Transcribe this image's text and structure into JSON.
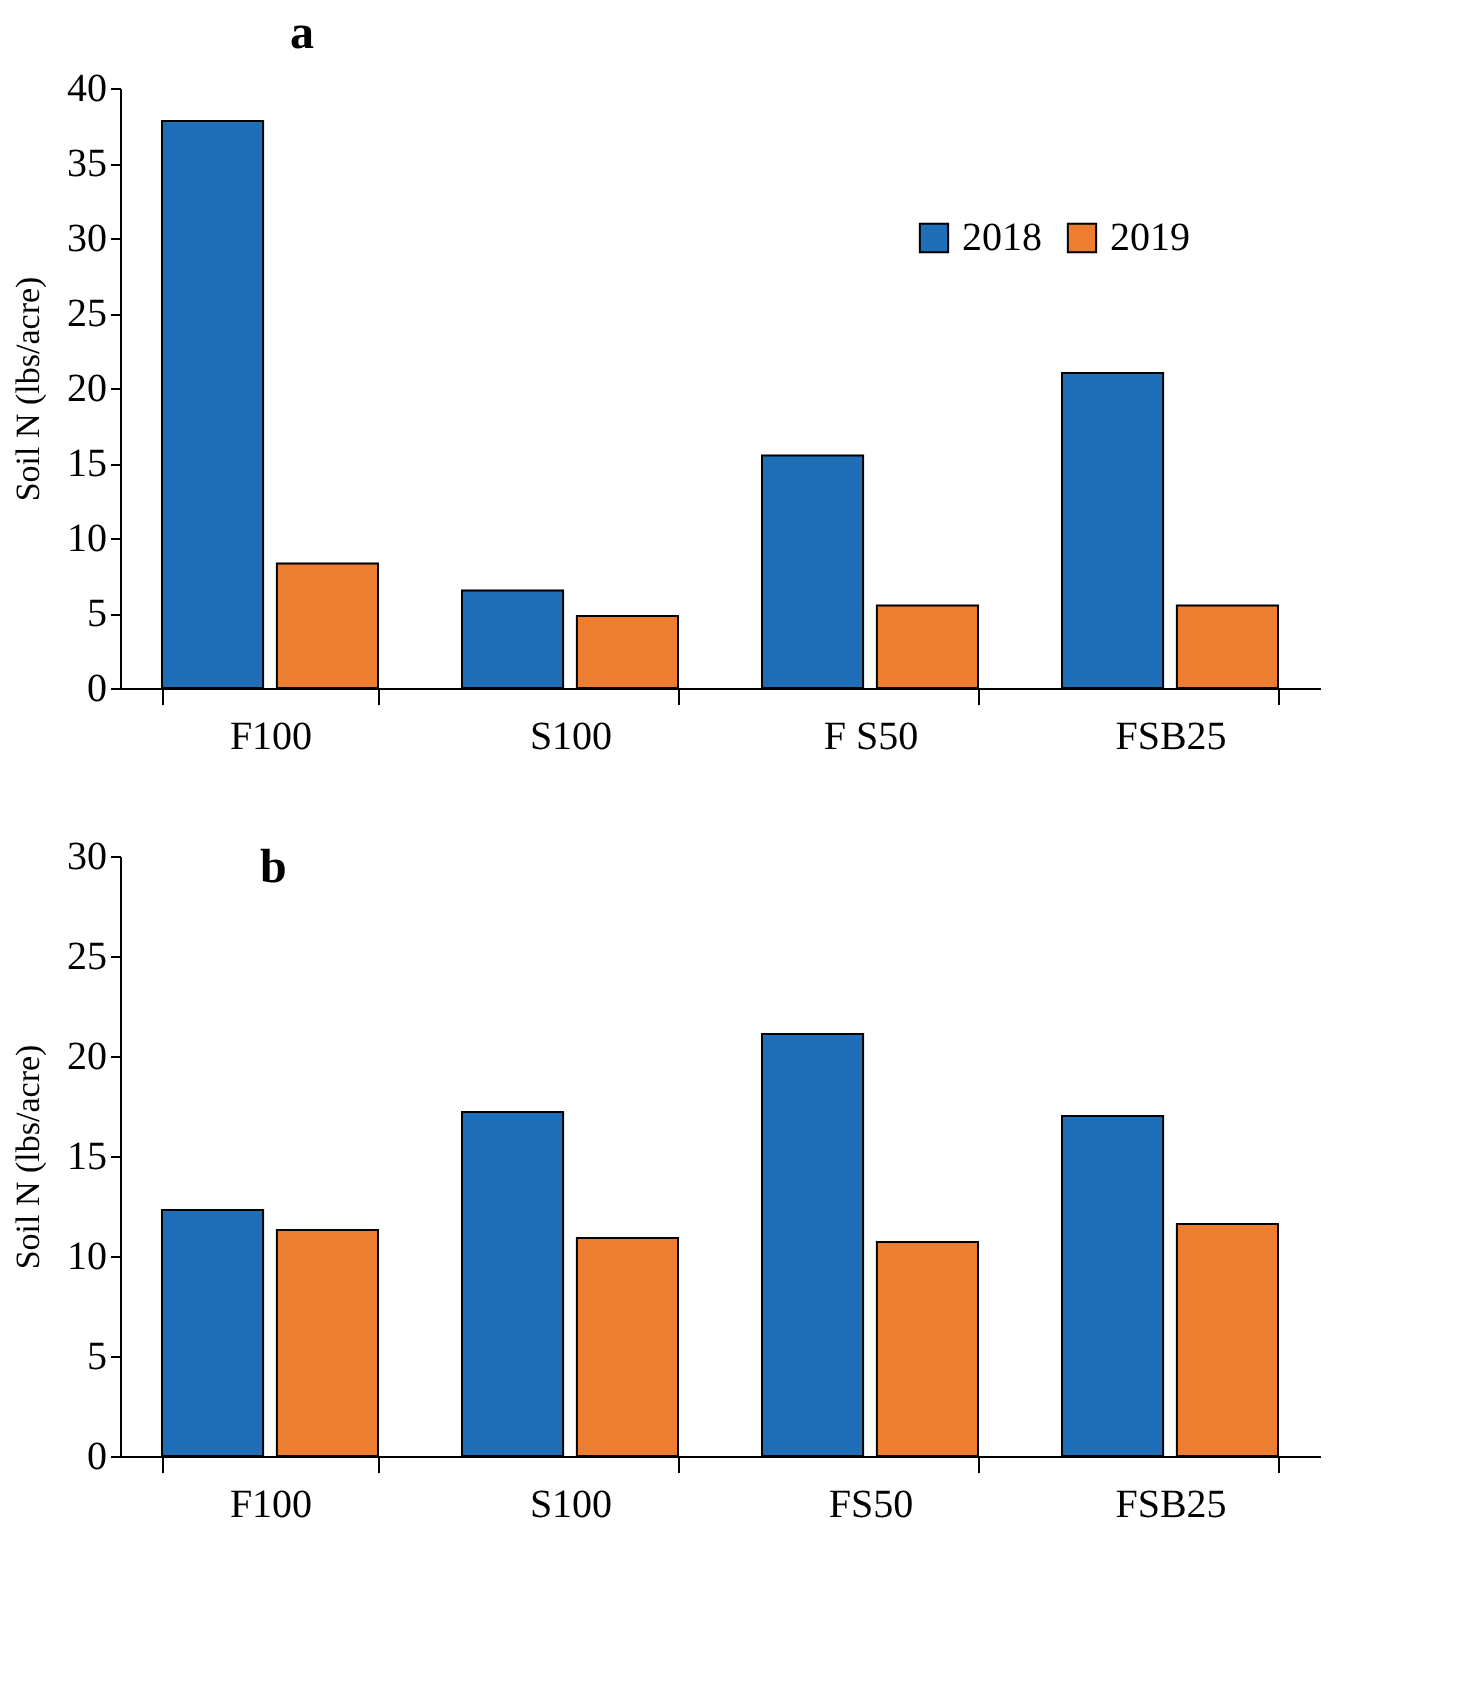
{
  "chart_data": [
    {
      "type": "bar",
      "title": "a",
      "ylabel": "Soil N (lbs/acre)",
      "categories": [
        "F100",
        "S100",
        "F S50",
        "FSB25"
      ],
      "series": [
        {
          "name": "2018",
          "color": "#1f6fb8",
          "values": [
            37.8,
            6.5,
            15.5,
            21.0
          ]
        },
        {
          "name": "2019",
          "color": "#ed7d31",
          "values": [
            8.3,
            4.8,
            5.5,
            5.5
          ]
        }
      ],
      "ylim": [
        0,
        40
      ],
      "yticks": [
        0,
        5,
        10,
        15,
        20,
        25,
        30,
        35,
        40
      ],
      "grid": false,
      "legend": "top right"
    },
    {
      "type": "bar",
      "title": "b",
      "ylabel": "Soil N (lbs/acre)",
      "categories": [
        "F100",
        "S100",
        "FS50",
        "FSB25"
      ],
      "series": [
        {
          "color": "#1f6fb8",
          "values": [
            12.3,
            17.2,
            21.1,
            17.0
          ]
        },
        {
          "color": "#ed7d31",
          "values": [
            11.3,
            10.9,
            10.7,
            11.6
          ]
        }
      ],
      "ylim": [
        0,
        30
      ],
      "yticks": [
        0,
        5,
        10,
        15,
        20,
        25,
        30
      ],
      "grid": false,
      "legend": false
    }
  ]
}
